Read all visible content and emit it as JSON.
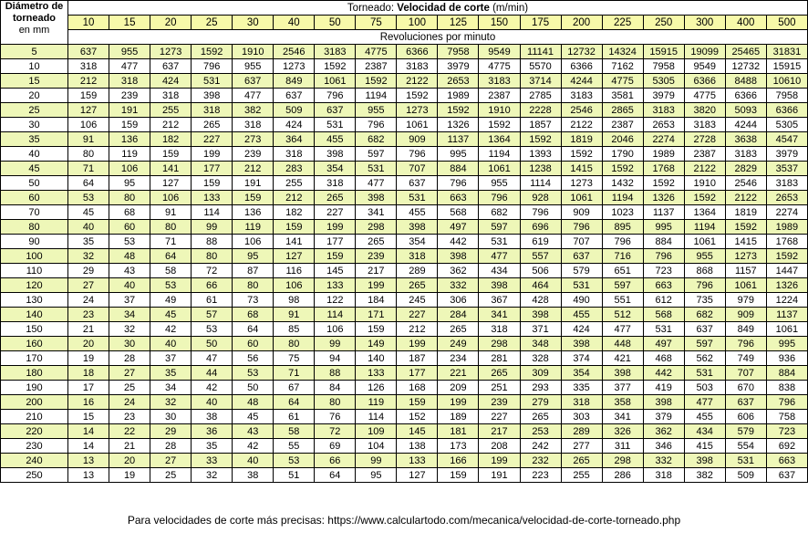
{
  "header": {
    "diameter_label_line1": "Diámetro de",
    "diameter_label_line2": "torneado",
    "diameter_unit": "en mm",
    "title_prefix": "Torneado: ",
    "title_bold": "Velocidad de corte",
    "title_unit": " (m/min)",
    "revolutions_label": "Revoluciones por minuto"
  },
  "cutting_speeds": [
    "10",
    "15",
    "20",
    "25",
    "30",
    "40",
    "50",
    "75",
    "100",
    "125",
    "150",
    "175",
    "200",
    "225",
    "250",
    "300",
    "400",
    "500"
  ],
  "rows": [
    {
      "d": "5",
      "v": [
        "637",
        "955",
        "1273",
        "1592",
        "1910",
        "2546",
        "3183",
        "4775",
        "6366",
        "7958",
        "9549",
        "11141",
        "12732",
        "14324",
        "15915",
        "19099",
        "25465",
        "31831"
      ]
    },
    {
      "d": "10",
      "v": [
        "318",
        "477",
        "637",
        "796",
        "955",
        "1273",
        "1592",
        "2387",
        "3183",
        "3979",
        "4775",
        "5570",
        "6366",
        "7162",
        "7958",
        "9549",
        "12732",
        "15915"
      ]
    },
    {
      "d": "15",
      "v": [
        "212",
        "318",
        "424",
        "531",
        "637",
        "849",
        "1061",
        "1592",
        "2122",
        "2653",
        "3183",
        "3714",
        "4244",
        "4775",
        "5305",
        "6366",
        "8488",
        "10610"
      ]
    },
    {
      "d": "20",
      "v": [
        "159",
        "239",
        "318",
        "398",
        "477",
        "637",
        "796",
        "1194",
        "1592",
        "1989",
        "2387",
        "2785",
        "3183",
        "3581",
        "3979",
        "4775",
        "6366",
        "7958"
      ]
    },
    {
      "d": "25",
      "v": [
        "127",
        "191",
        "255",
        "318",
        "382",
        "509",
        "637",
        "955",
        "1273",
        "1592",
        "1910",
        "2228",
        "2546",
        "2865",
        "3183",
        "3820",
        "5093",
        "6366"
      ]
    },
    {
      "d": "30",
      "v": [
        "106",
        "159",
        "212",
        "265",
        "318",
        "424",
        "531",
        "796",
        "1061",
        "1326",
        "1592",
        "1857",
        "2122",
        "2387",
        "2653",
        "3183",
        "4244",
        "5305"
      ]
    },
    {
      "d": "35",
      "v": [
        "91",
        "136",
        "182",
        "227",
        "273",
        "364",
        "455",
        "682",
        "909",
        "1137",
        "1364",
        "1592",
        "1819",
        "2046",
        "2274",
        "2728",
        "3638",
        "4547"
      ]
    },
    {
      "d": "40",
      "v": [
        "80",
        "119",
        "159",
        "199",
        "239",
        "318",
        "398",
        "597",
        "796",
        "995",
        "1194",
        "1393",
        "1592",
        "1790",
        "1989",
        "2387",
        "3183",
        "3979"
      ]
    },
    {
      "d": "45",
      "v": [
        "71",
        "106",
        "141",
        "177",
        "212",
        "283",
        "354",
        "531",
        "707",
        "884",
        "1061",
        "1238",
        "1415",
        "1592",
        "1768",
        "2122",
        "2829",
        "3537"
      ]
    },
    {
      "d": "50",
      "v": [
        "64",
        "95",
        "127",
        "159",
        "191",
        "255",
        "318",
        "477",
        "637",
        "796",
        "955",
        "1114",
        "1273",
        "1432",
        "1592",
        "1910",
        "2546",
        "3183"
      ]
    },
    {
      "d": "60",
      "v": [
        "53",
        "80",
        "106",
        "133",
        "159",
        "212",
        "265",
        "398",
        "531",
        "663",
        "796",
        "928",
        "1061",
        "1194",
        "1326",
        "1592",
        "2122",
        "2653"
      ]
    },
    {
      "d": "70",
      "v": [
        "45",
        "68",
        "91",
        "114",
        "136",
        "182",
        "227",
        "341",
        "455",
        "568",
        "682",
        "796",
        "909",
        "1023",
        "1137",
        "1364",
        "1819",
        "2274"
      ]
    },
    {
      "d": "80",
      "v": [
        "40",
        "60",
        "80",
        "99",
        "119",
        "159",
        "199",
        "298",
        "398",
        "497",
        "597",
        "696",
        "796",
        "895",
        "995",
        "1194",
        "1592",
        "1989"
      ]
    },
    {
      "d": "90",
      "v": [
        "35",
        "53",
        "71",
        "88",
        "106",
        "141",
        "177",
        "265",
        "354",
        "442",
        "531",
        "619",
        "707",
        "796",
        "884",
        "1061",
        "1415",
        "1768"
      ]
    },
    {
      "d": "100",
      "v": [
        "32",
        "48",
        "64",
        "80",
        "95",
        "127",
        "159",
        "239",
        "318",
        "398",
        "477",
        "557",
        "637",
        "716",
        "796",
        "955",
        "1273",
        "1592"
      ]
    },
    {
      "d": "110",
      "v": [
        "29",
        "43",
        "58",
        "72",
        "87",
        "116",
        "145",
        "217",
        "289",
        "362",
        "434",
        "506",
        "579",
        "651",
        "723",
        "868",
        "1157",
        "1447"
      ]
    },
    {
      "d": "120",
      "v": [
        "27",
        "40",
        "53",
        "66",
        "80",
        "106",
        "133",
        "199",
        "265",
        "332",
        "398",
        "464",
        "531",
        "597",
        "663",
        "796",
        "1061",
        "1326"
      ]
    },
    {
      "d": "130",
      "v": [
        "24",
        "37",
        "49",
        "61",
        "73",
        "98",
        "122",
        "184",
        "245",
        "306",
        "367",
        "428",
        "490",
        "551",
        "612",
        "735",
        "979",
        "1224"
      ]
    },
    {
      "d": "140",
      "v": [
        "23",
        "34",
        "45",
        "57",
        "68",
        "91",
        "114",
        "171",
        "227",
        "284",
        "341",
        "398",
        "455",
        "512",
        "568",
        "682",
        "909",
        "1137"
      ]
    },
    {
      "d": "150",
      "v": [
        "21",
        "32",
        "42",
        "53",
        "64",
        "85",
        "106",
        "159",
        "212",
        "265",
        "318",
        "371",
        "424",
        "477",
        "531",
        "637",
        "849",
        "1061"
      ]
    },
    {
      "d": "160",
      "v": [
        "20",
        "30",
        "40",
        "50",
        "60",
        "80",
        "99",
        "149",
        "199",
        "249",
        "298",
        "348",
        "398",
        "448",
        "497",
        "597",
        "796",
        "995"
      ]
    },
    {
      "d": "170",
      "v": [
        "19",
        "28",
        "37",
        "47",
        "56",
        "75",
        "94",
        "140",
        "187",
        "234",
        "281",
        "328",
        "374",
        "421",
        "468",
        "562",
        "749",
        "936"
      ]
    },
    {
      "d": "180",
      "v": [
        "18",
        "27",
        "35",
        "44",
        "53",
        "71",
        "88",
        "133",
        "177",
        "221",
        "265",
        "309",
        "354",
        "398",
        "442",
        "531",
        "707",
        "884"
      ]
    },
    {
      "d": "190",
      "v": [
        "17",
        "25",
        "34",
        "42",
        "50",
        "67",
        "84",
        "126",
        "168",
        "209",
        "251",
        "293",
        "335",
        "377",
        "419",
        "503",
        "670",
        "838"
      ]
    },
    {
      "d": "200",
      "v": [
        "16",
        "24",
        "32",
        "40",
        "48",
        "64",
        "80",
        "119",
        "159",
        "199",
        "239",
        "279",
        "318",
        "358",
        "398",
        "477",
        "637",
        "796"
      ]
    },
    {
      "d": "210",
      "v": [
        "15",
        "23",
        "30",
        "38",
        "45",
        "61",
        "76",
        "114",
        "152",
        "189",
        "227",
        "265",
        "303",
        "341",
        "379",
        "455",
        "606",
        "758"
      ]
    },
    {
      "d": "220",
      "v": [
        "14",
        "22",
        "29",
        "36",
        "43",
        "58",
        "72",
        "109",
        "145",
        "181",
        "217",
        "253",
        "289",
        "326",
        "362",
        "434",
        "579",
        "723"
      ]
    },
    {
      "d": "230",
      "v": [
        "14",
        "21",
        "28",
        "35",
        "42",
        "55",
        "69",
        "104",
        "138",
        "173",
        "208",
        "242",
        "277",
        "311",
        "346",
        "415",
        "554",
        "692"
      ]
    },
    {
      "d": "240",
      "v": [
        "13",
        "20",
        "27",
        "33",
        "40",
        "53",
        "66",
        "99",
        "133",
        "166",
        "199",
        "232",
        "265",
        "298",
        "332",
        "398",
        "531",
        "663"
      ]
    },
    {
      "d": "250",
      "v": [
        "13",
        "19",
        "25",
        "32",
        "38",
        "51",
        "64",
        "95",
        "127",
        "159",
        "191",
        "223",
        "255",
        "286",
        "318",
        "382",
        "509",
        "637"
      ]
    }
  ],
  "colors": {
    "speed_row": "#f7f9a9",
    "highlight_row": "#eef7b8",
    "border": "#000000"
  },
  "footer": {
    "text": "Para velocidades de corte más precisas: https://www.calculartodo.com/mecanica/velocidad-de-corte-torneado.php"
  }
}
